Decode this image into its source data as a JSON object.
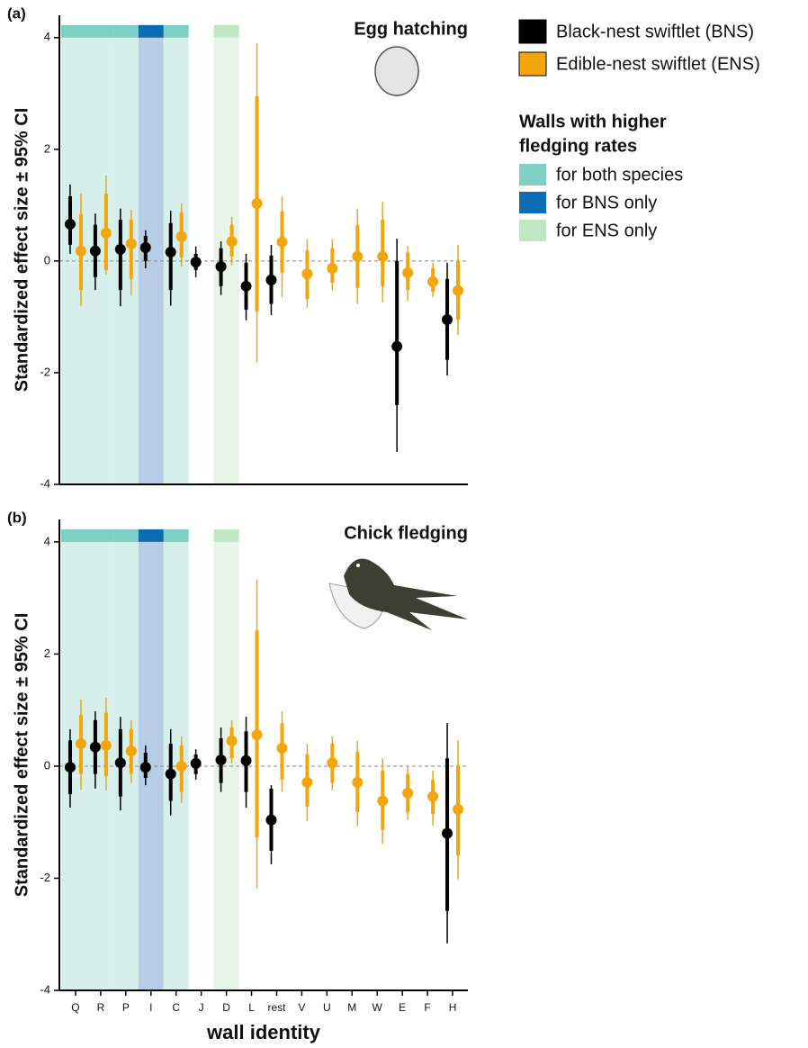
{
  "legend": {
    "series": [
      {
        "name": "Black-nest swiftlet (BNS)",
        "color": "#000000"
      },
      {
        "name": "Edible-nest swiftlet (ENS)",
        "color": "#f2a60c"
      }
    ],
    "highlight_title": [
      "Walls with higher",
      "fledging rates"
    ],
    "highlight": [
      {
        "name": "for both species",
        "color": "#7fcfc4",
        "fill": "#d6efeb",
        "categories": [
          "Q",
          "R",
          "P",
          "C"
        ]
      },
      {
        "name": "for BNS only",
        "color": "#0a6db3",
        "fill": "#b7cde6",
        "categories": [
          "I"
        ]
      },
      {
        "name": "for ENS only",
        "color": "#bfe7c4",
        "fill": "#e6f5e8",
        "categories": [
          "D"
        ]
      }
    ]
  },
  "chart_data": [
    {
      "type": "errorbar",
      "panel_label": "(a)",
      "title": "Egg hatching",
      "ylabel": "Standardized effect size ± 95% CI",
      "ylim": [
        -4,
        4.4
      ],
      "yticks": [
        -4,
        -2,
        0,
        2,
        4
      ],
      "zero_line": true,
      "series": [
        {
          "color": "#000000",
          "values": [
            0.66,
            0.18,
            0.21,
            0.24,
            0.16,
            -0.02,
            -0.1,
            -0.45,
            -0.34,
            null,
            null,
            null,
            null,
            -1.53,
            null,
            -1.05
          ],
          "lower": [
            0.13,
            -0.52,
            -0.81,
            -0.13,
            -0.8,
            -0.29,
            -0.61,
            -1.06,
            -0.97,
            null,
            null,
            null,
            null,
            -3.42,
            null,
            -2.05
          ],
          "upper": [
            1.37,
            0.85,
            0.94,
            0.55,
            0.9,
            0.26,
            0.35,
            0.13,
            0.29,
            null,
            null,
            null,
            null,
            0.4,
            null,
            -0.03
          ],
          "inner_lower": [
            0.29,
            -0.29,
            -0.52,
            0,
            -0.52,
            -0.16,
            -0.45,
            -0.87,
            -0.77,
            null,
            null,
            null,
            null,
            -2.58,
            null,
            -1.77
          ],
          "inner_upper": [
            1.16,
            0.65,
            0.74,
            0.45,
            0.68,
            0.13,
            0.23,
            -0.03,
            0.1,
            null,
            null,
            null,
            null,
            0,
            null,
            -0.32
          ]
        },
        {
          "color": "#f2a60c",
          "values": [
            0.18,
            0.5,
            0.31,
            null,
            0.44,
            null,
            0.35,
            1.03,
            0.34,
            -0.23,
            -0.13,
            0.08,
            0.08,
            -0.21,
            -0.37,
            -0.53
          ],
          "lower": [
            -0.81,
            -0.24,
            -0.61,
            null,
            -0.1,
            null,
            -0.08,
            -1.82,
            -0.65,
            -0.84,
            -0.52,
            -0.77,
            -0.74,
            -0.71,
            -0.65,
            -1.32
          ],
          "upper": [
            1.21,
            1.53,
            0.92,
            null,
            1.03,
            null,
            0.79,
            3.9,
            1.16,
            0.39,
            0.39,
            0.94,
            1.06,
            0.27,
            -0.03,
            0.29
          ],
          "inner_lower": [
            -0.52,
            -0.16,
            -0.32,
            null,
            0.06,
            null,
            0.08,
            -0.9,
            -0.21,
            -0.68,
            -0.39,
            -0.48,
            -0.45,
            -0.52,
            -0.55,
            -1.05
          ],
          "inner_upper": [
            0.84,
            1.21,
            0.74,
            null,
            0.87,
            null,
            0.65,
            2.95,
            0.89,
            0.19,
            0.23,
            0.65,
            0.74,
            0.15,
            -0.13,
            0
          ]
        }
      ]
    },
    {
      "type": "errorbar",
      "panel_label": "(b)",
      "title": "Chick fledging",
      "ylabel": "Standardized effect size ± 95% CI",
      "xlabel": "wall identity",
      "categories": [
        "Q",
        "R",
        "P",
        "I",
        "C",
        "J",
        "D",
        "L",
        "rest",
        "V",
        "U",
        "M",
        "W",
        "E",
        "F",
        "H"
      ],
      "ylim": [
        -4,
        4.4
      ],
      "yticks": [
        -4,
        -2,
        0,
        2,
        4
      ],
      "zero_line": true,
      "series": [
        {
          "color": "#000000",
          "values": [
            -0.02,
            0.34,
            0.06,
            -0.02,
            -0.14,
            0.05,
            0.11,
            0.1,
            -0.96,
            null,
            null,
            null,
            null,
            null,
            null,
            -1.2
          ],
          "lower": [
            -0.74,
            -0.4,
            -0.79,
            -0.34,
            -0.88,
            -0.24,
            -0.46,
            -0.74,
            -1.75,
            null,
            null,
            null,
            null,
            null,
            null,
            -3.16
          ],
          "upper": [
            0.66,
            0.98,
            0.88,
            0.37,
            0.66,
            0.3,
            0.69,
            0.88,
            -0.34,
            null,
            null,
            null,
            null,
            null,
            null,
            0.77
          ],
          "inner_lower": [
            -0.5,
            -0.14,
            -0.54,
            -0.21,
            -0.62,
            -0.14,
            -0.3,
            -0.46,
            -1.51,
            null,
            null,
            null,
            null,
            null,
            null,
            -2.58
          ],
          "inner_upper": [
            0.46,
            0.82,
            0.66,
            0.24,
            0.4,
            0.21,
            0.5,
            0.62,
            -0.4,
            null,
            null,
            null,
            null,
            null,
            null,
            0.14
          ]
        },
        {
          "color": "#f2a60c",
          "values": [
            0.4,
            0.37,
            0.27,
            null,
            0,
            null,
            0.45,
            0.56,
            0.32,
            -0.29,
            0.06,
            -0.29,
            -0.62,
            -0.48,
            -0.54,
            -0.77
          ],
          "lower": [
            -0.42,
            -0.43,
            -0.3,
            null,
            -0.66,
            null,
            0.05,
            -2.18,
            -0.46,
            -0.98,
            -0.43,
            -1.07,
            -1.39,
            -0.96,
            -1.06,
            -2.02
          ],
          "upper": [
            1.19,
            1.22,
            0.82,
            null,
            0.53,
            null,
            0.82,
            3.33,
            0.98,
            0.4,
            0.53,
            0.45,
            0.14,
            0,
            -0.08,
            0.46
          ],
          "inner_lower": [
            -0.14,
            -0.18,
            -0.14,
            null,
            -0.46,
            null,
            0.14,
            -1.27,
            -0.24,
            -0.72,
            -0.3,
            -0.82,
            -1.14,
            -0.82,
            -0.85,
            -1.59
          ],
          "inner_upper": [
            0.91,
            0.95,
            0.66,
            null,
            0.37,
            null,
            0.69,
            2.42,
            0.77,
            0.21,
            0.4,
            0.26,
            -0.08,
            -0.14,
            -0.24,
            0.02
          ]
        }
      ]
    }
  ]
}
